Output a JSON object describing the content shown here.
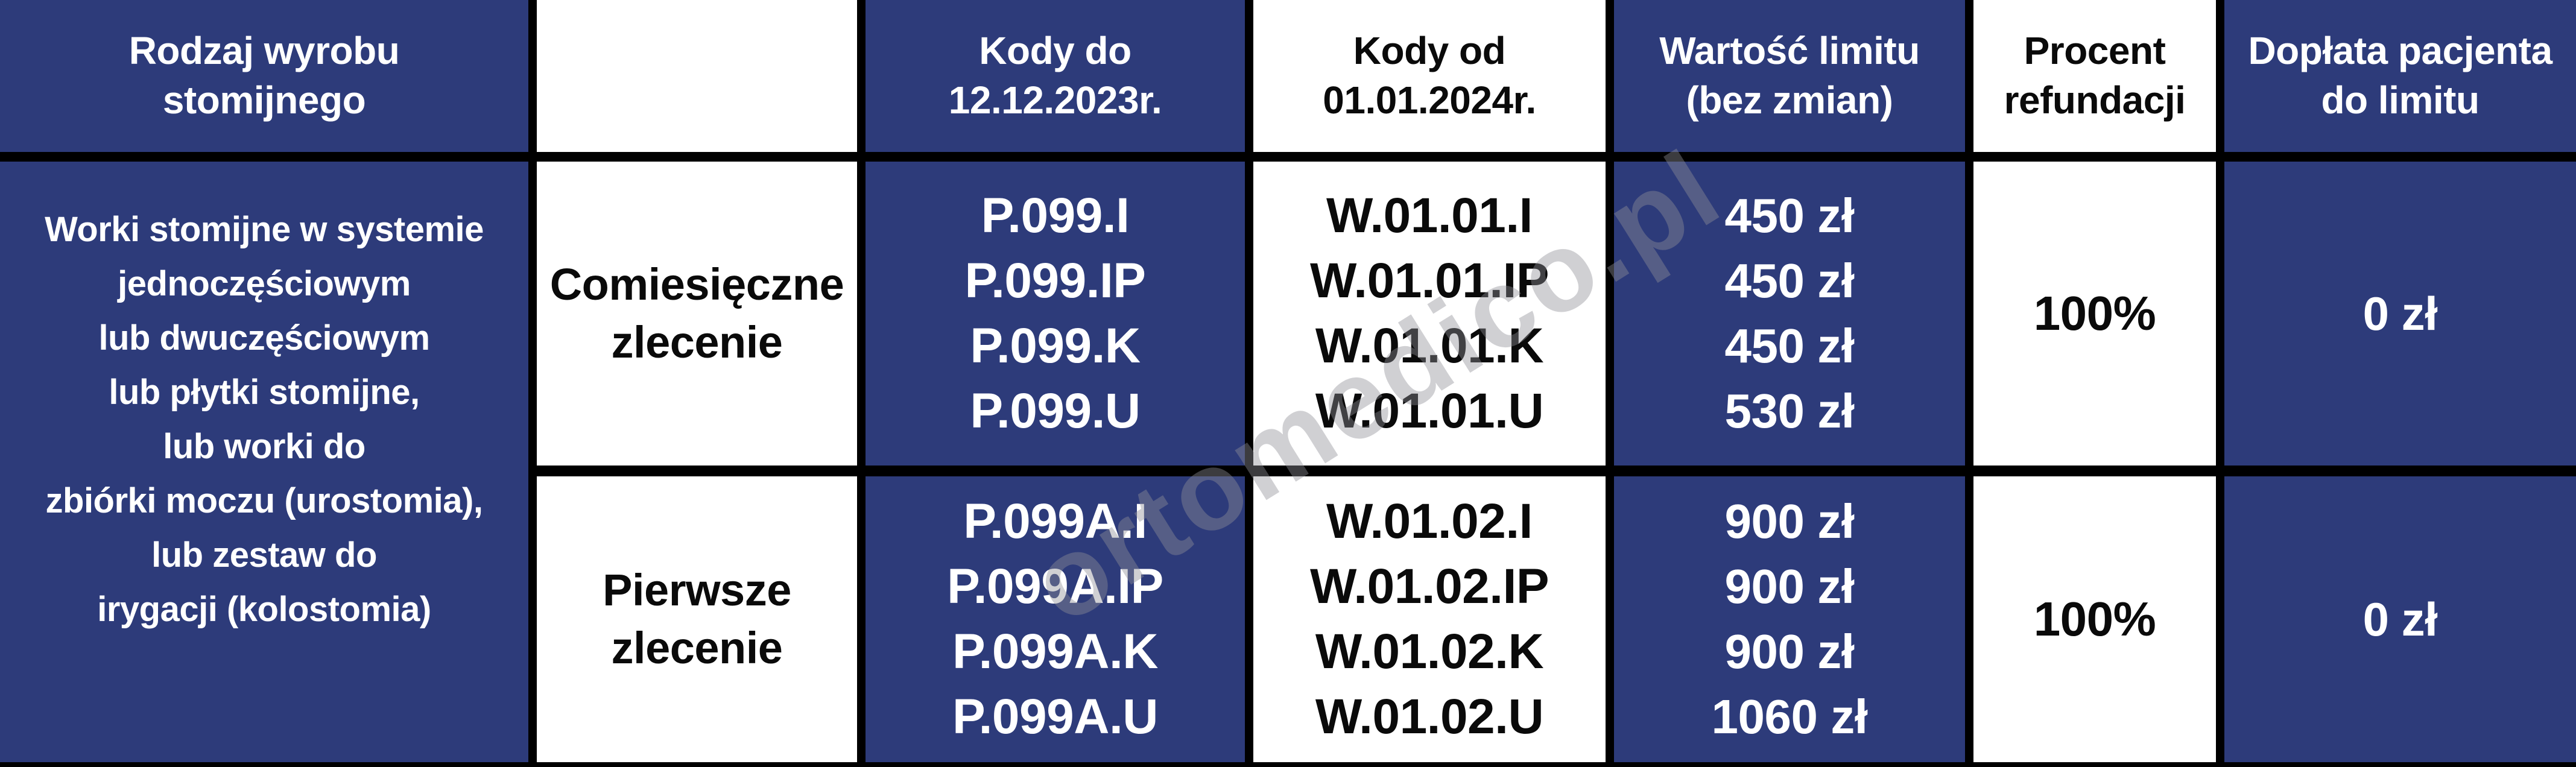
{
  "colors": {
    "navy": "#2d3b7a",
    "cell_white": "#ffffff",
    "border_black": "#000000",
    "watermark_gray": "#8e8e96"
  },
  "watermark": {
    "text": "ortomedico.pl"
  },
  "table": {
    "header": {
      "product_type": "Rodzaj wyrobu\nstomijnego",
      "order_col": "",
      "codes_until": "Kody do\n12.12.2023r.",
      "codes_from": "Kody od\n01.01.2024r.",
      "limit_value": "Wartość limitu\n(bez zmian)",
      "refund_percent": "Procent\nrefundacji",
      "patient_copay": "Dopłata pacjenta\ndo limitu"
    },
    "product": "Worki stomijne w systemie\njednoczęściowym\nlub dwuczęściowym\nlub płytki stomijne,\nlub worki do\nzbiórki moczu (urostomia),\nlub zestaw do\nirygacji (kolostomia)",
    "rows": [
      {
        "order_type": "Comiesięczne\nzlecenie",
        "codes_old": "P.099.I\nP.099.IP\nP.099.K\nP.099.U",
        "codes_new": "W.01.01.I\nW.01.01.IP\nW.01.01.K\nW.01.01.U",
        "limit": "450 zł\n450 zł\n450 zł\n530 zł",
        "refund": "100%",
        "copay": "0 zł"
      },
      {
        "order_type": "Pierwsze\nzlecenie",
        "codes_old": "P.099A.I\nP.099A.IP\nP.099A.K\nP.099A.U",
        "codes_new": "W.01.02.I\nW.01.02.IP\nW.01.02.K\nW.01.02.U",
        "limit": "900 zł\n900 zł\n900 zł\n1060 zł",
        "refund": "100%",
        "copay": "0 zł"
      }
    ]
  }
}
